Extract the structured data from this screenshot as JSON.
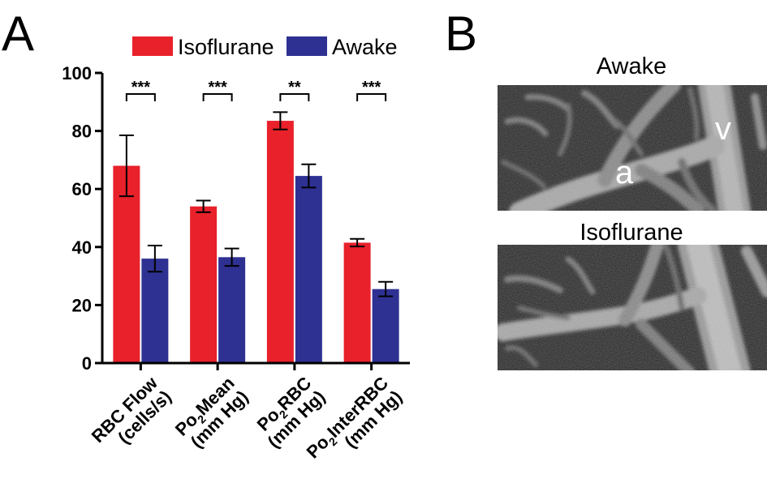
{
  "panels": {
    "a_letter": "A",
    "b_letter": "B"
  },
  "chart_data": {
    "type": "bar",
    "title": "",
    "xlabel": "",
    "ylabel": "",
    "ylim": [
      0,
      100
    ],
    "yticks": [
      0,
      20,
      40,
      60,
      80,
      100
    ],
    "grid": false,
    "legend": "top",
    "categories": [
      {
        "line1_main": "RBC Flow",
        "line1_sub": "",
        "line1_rest": "",
        "line2": "(cells/s)"
      },
      {
        "line1_main": "Po",
        "line1_sub": "2",
        "line1_rest": "Mean",
        "line2": "(mm Hg)"
      },
      {
        "line1_main": "Po",
        "line1_sub": "2",
        "line1_rest": "RBC",
        "line2": "(mm Hg)"
      },
      {
        "line1_main": "Po",
        "line1_sub": "2",
        "line1_rest": "InterRBC",
        "line2": "(mm Hg)"
      }
    ],
    "series": [
      {
        "name": "Isoflurane",
        "color": "#e8212b",
        "values": [
          68,
          54,
          83.5,
          41.5
        ],
        "errors": [
          10.5,
          2,
          3,
          1.3
        ]
      },
      {
        "name": "Awake",
        "color": "#2e3192",
        "values": [
          36,
          36.5,
          64.5,
          25.5
        ],
        "errors": [
          4.5,
          3,
          4,
          2.5
        ]
      }
    ],
    "significance": [
      "***",
      "***",
      "**",
      "***"
    ]
  },
  "images": {
    "top_title": "Awake",
    "bottom_title": "Isoflurane",
    "label_artery": "a",
    "label_vein": "v"
  }
}
